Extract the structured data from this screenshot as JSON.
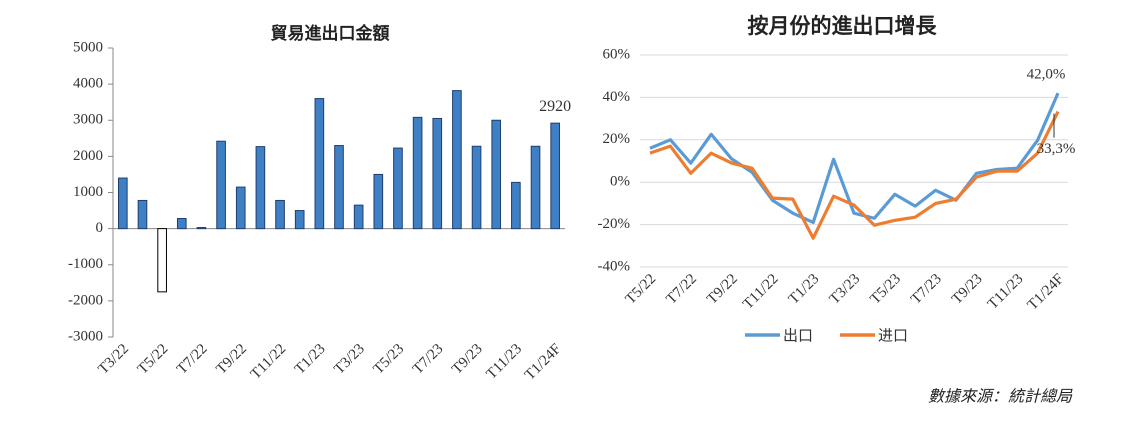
{
  "chart_data": [
    {
      "type": "bar",
      "title": "貿易進出口金額",
      "categories": [
        "T3/22",
        null,
        "T5/22",
        null,
        "T7/22",
        null,
        "T9/22",
        null,
        "T11/22",
        null,
        "T1/23",
        null,
        "T3/23",
        null,
        "T5/23",
        null,
        "T7/23",
        null,
        "T9/23",
        null,
        "T11/23",
        null,
        "T1/24F"
      ],
      "values": [
        1400,
        780,
        -1750,
        280,
        30,
        2420,
        1150,
        2270,
        780,
        500,
        3600,
        2300,
        650,
        1500,
        2230,
        3080,
        3050,
        3820,
        2280,
        3000,
        1280,
        2280,
        2920
      ],
      "value_labels": [
        null,
        null,
        null,
        null,
        null,
        null,
        null,
        null,
        null,
        null,
        null,
        null,
        null,
        null,
        null,
        null,
        null,
        null,
        null,
        null,
        null,
        null,
        "2920"
      ],
      "color": "#3f7fc4",
      "negative_color": "#ffffff",
      "ylim": [
        -3000,
        5000
      ],
      "yticks": [
        -3000,
        -2000,
        -1000,
        0,
        1000,
        2000,
        3000,
        4000,
        5000
      ],
      "grid": false
    },
    {
      "type": "line",
      "title": "按月份的進出口增長",
      "categories": [
        "T5/22",
        null,
        "T7/22",
        null,
        "T9/22",
        null,
        "T11/22",
        null,
        "T1/23",
        null,
        "T3/23",
        null,
        "T5/23",
        null,
        "T7/23",
        null,
        "T9/23",
        null,
        "T11/23",
        null,
        "T1/24F"
      ],
      "series": [
        {
          "name": "出口",
          "color": "#5b9bd5",
          "values": [
            16,
            20,
            9,
            22.6,
            11,
            4.7,
            -8.5,
            -14.6,
            -19,
            10.8,
            -14.6,
            -17,
            -5.7,
            -11.3,
            -3.8,
            -8.5,
            4.2,
            6,
            6.6,
            19.8,
            42
          ],
          "value_labels": [
            null,
            null,
            null,
            null,
            null,
            null,
            null,
            null,
            null,
            null,
            null,
            null,
            null,
            null,
            null,
            null,
            null,
            null,
            null,
            null,
            "42,0%"
          ]
        },
        {
          "name": "进口",
          "color": "#ed7d31",
          "values": [
            13.7,
            17,
            4.2,
            13.7,
            9,
            6.6,
            -7.5,
            -8,
            -26.4,
            -6.6,
            -10.8,
            -20.3,
            -18,
            -16.5,
            -10,
            -8,
            2.4,
            5.2,
            5.2,
            13.7,
            33.3
          ],
          "value_labels": [
            null,
            null,
            null,
            null,
            null,
            null,
            null,
            null,
            null,
            null,
            null,
            null,
            null,
            null,
            null,
            null,
            null,
            null,
            null,
            null,
            "33,3%"
          ]
        }
      ],
      "ylim": [
        -40,
        60
      ],
      "yticks": [
        {
          "value": -40,
          "label": "-40%"
        },
        {
          "value": -20,
          "label": "-20%"
        },
        {
          "value": 0,
          "label": "0%"
        },
        {
          "value": 20,
          "label": "20%"
        },
        {
          "value": 40,
          "label": "40%"
        },
        {
          "value": 60,
          "label": "60%"
        }
      ],
      "grid": true,
      "legend": "bottom"
    }
  ],
  "source": "數據來源：統計總局"
}
